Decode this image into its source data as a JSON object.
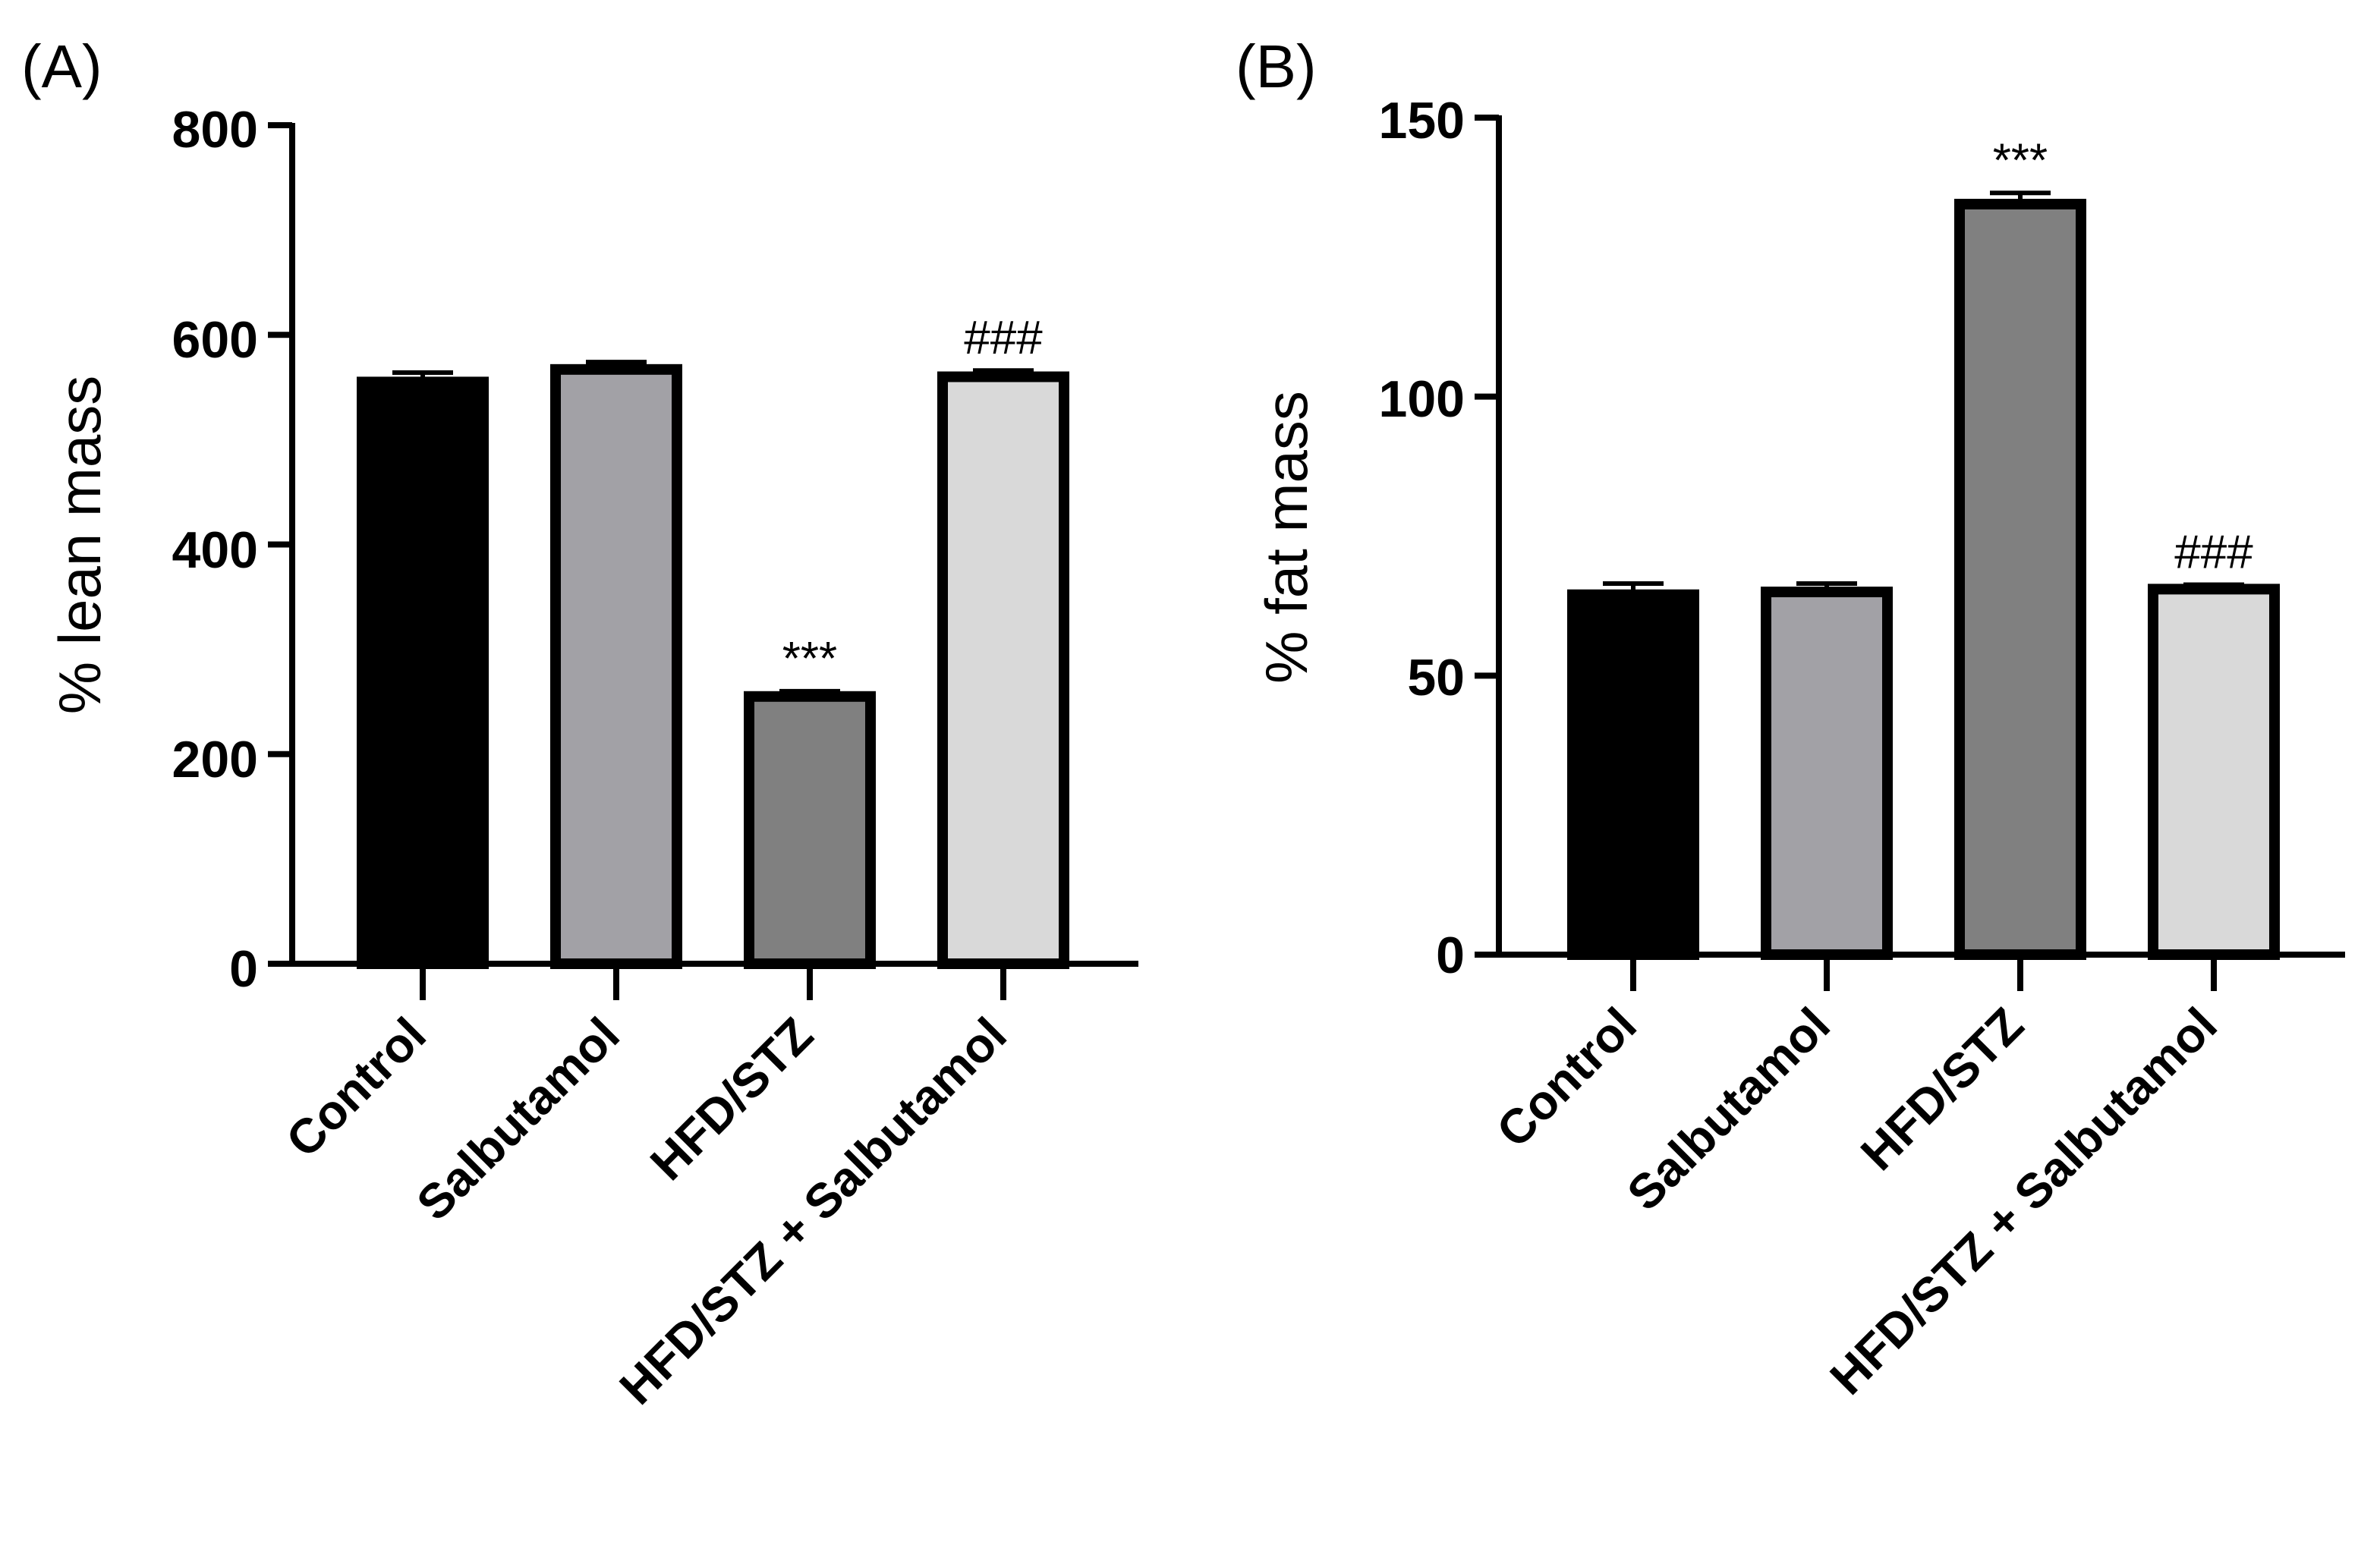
{
  "figure": {
    "background": "#ffffff",
    "bar_fills": [
      "#000000",
      "#a2a1a6",
      "#808080",
      "#d9d9d9"
    ],
    "bar_edge_color": "#000000"
  },
  "chart_data": [
    {
      "type": "bar",
      "panel_label": "(A)",
      "ylabel": "% lean mass",
      "xlabel": "",
      "ylim": [
        0,
        800
      ],
      "yticks": [
        0,
        200,
        400,
        600,
        800
      ],
      "ytick_labels": [
        "0",
        "200",
        "400",
        "600",
        "800"
      ],
      "grid": false,
      "legend": "none",
      "categories": [
        "Control",
        "Salbutamol",
        "HFD/STZ",
        "HFD/STZ + Salbutamol"
      ],
      "series": [
        {
          "name": "% lean mass",
          "values": [
            555,
            567,
            255,
            560
          ],
          "errors": [
            9,
            7,
            5,
            6
          ]
        }
      ],
      "annotations": [
        "",
        "",
        "***",
        "###"
      ]
    },
    {
      "type": "bar",
      "panel_label": "(B)",
      "ylabel": "% fat mass",
      "xlabel": "",
      "ylim": [
        0,
        150
      ],
      "yticks": [
        0,
        50,
        100,
        150
      ],
      "ytick_labels": [
        "0",
        "50",
        "100",
        "150"
      ],
      "grid": false,
      "legend": "none",
      "categories": [
        "Control",
        "Salbutamol",
        "HFD/STZ",
        "HFD/STZ + Salbutamol"
      ],
      "series": [
        {
          "name": "% fat mass",
          "values": [
            64.5,
            65,
            134.5,
            65.5
          ],
          "errors": [
            2,
            1.5,
            2,
            0.8
          ]
        }
      ],
      "annotations": [
        "",
        "",
        "***",
        "###"
      ]
    }
  ]
}
